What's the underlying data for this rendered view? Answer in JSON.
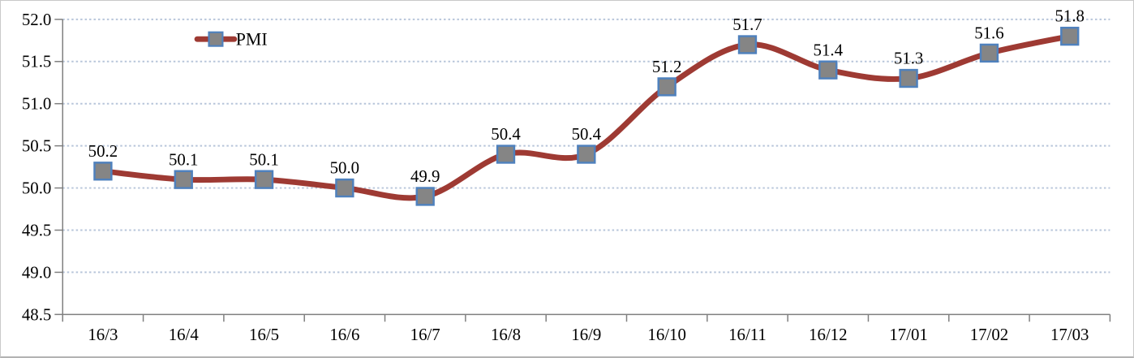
{
  "chart_data": {
    "type": "line",
    "title": "",
    "xlabel": "",
    "ylabel": "",
    "categories": [
      "16/3",
      "16/4",
      "16/5",
      "16/6",
      "16/7",
      "16/8",
      "16/9",
      "16/10",
      "16/11",
      "16/12",
      "17/01",
      "17/02",
      "17/03"
    ],
    "series": [
      {
        "name": "PMI",
        "values": [
          50.2,
          50.1,
          50.1,
          50.0,
          49.9,
          50.4,
          50.4,
          51.2,
          51.7,
          51.4,
          51.3,
          51.6,
          51.8
        ],
        "data_labels": [
          "50.2",
          "50.1",
          "50.1",
          "50.0",
          "49.9",
          "50.4",
          "50.4",
          "51.2",
          "51.7",
          "51.4",
          "51.3",
          "51.6",
          "51.8"
        ]
      }
    ],
    "ylim": [
      48.5,
      52.0
    ],
    "ytick_step": 0.5,
    "ytick_labels": [
      "48.5",
      "49.0",
      "49.5",
      "50.0",
      "50.5",
      "51.0",
      "51.5",
      "52.0"
    ],
    "grid": "horizontal-dotted",
    "smoothed_line": true,
    "marker_shape": "square",
    "legend": {
      "label": "PMI",
      "position": "top-left-inside"
    }
  },
  "colors": {
    "line": "#9E3A33",
    "marker_fill": "#858585",
    "marker_border": "#4F81BD",
    "gridline": "#B7C5DA",
    "axis": "#7F7F7F",
    "text": "#000000",
    "background": "#FFFFFF"
  }
}
